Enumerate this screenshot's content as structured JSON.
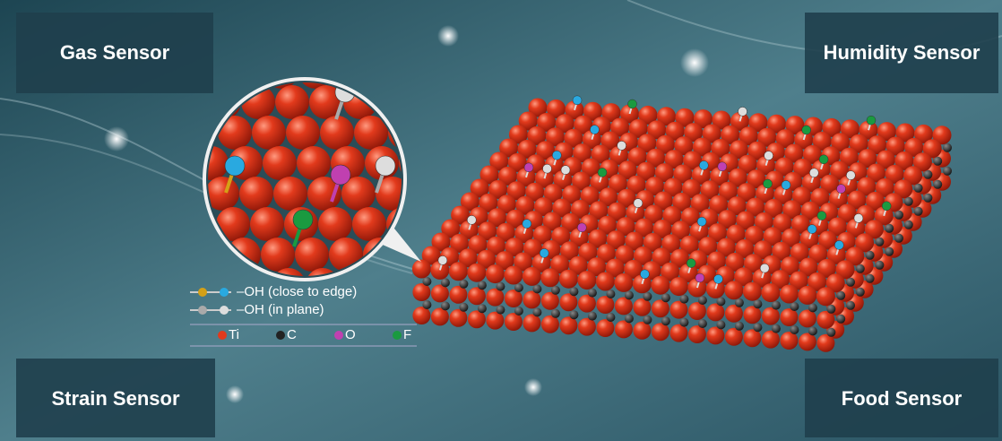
{
  "corner_labels": [
    "Gas Sensor",
    "Humidity Sensor",
    "Strain Sensor",
    "Food Sensor"
  ],
  "legend": {
    "oh_edge": "–OH (close to edge)",
    "oh_plane": "–OH (in plane)",
    "ti": "Ti",
    "c": "C",
    "o": "O",
    "f": "F"
  }
}
